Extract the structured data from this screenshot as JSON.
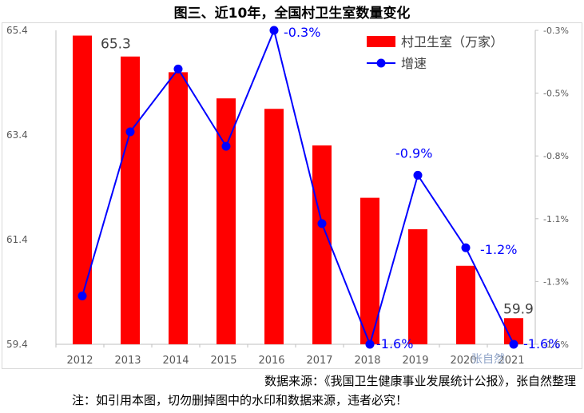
{
  "chart_data": {
    "type": "bar",
    "title": "图三、近10年，全国村卫生室数量变化",
    "categories": [
      "2012",
      "2013",
      "2014",
      "2015",
      "2016",
      "2017",
      "2018",
      "2019",
      "2020",
      "2021"
    ],
    "series": [
      {
        "name": "村卫生室（万家）",
        "type": "bar",
        "axis": "left",
        "color": "#ff0000",
        "values": [
          65.3,
          64.9,
          64.6,
          64.1,
          63.9,
          63.2,
          62.2,
          61.6,
          60.9,
          59.9
        ]
      },
      {
        "name": "增速",
        "type": "line",
        "axis": "right",
        "color": "#0000ff",
        "unit": "%",
        "values": [
          -1.4,
          -0.72,
          -0.46,
          -0.78,
          -0.3,
          -1.1,
          -1.6,
          -0.9,
          -1.2,
          -1.6
        ]
      }
    ],
    "y_left": {
      "min": 59.4,
      "max": 65.4,
      "ticks": [
        "65.4",
        "63.4",
        "61.4",
        "59.4"
      ]
    },
    "y_right": {
      "min": -1.6,
      "max": -0.3,
      "ticks": [
        "-0.3%",
        "-0.5%",
        "-0.8%",
        "-1.1%",
        "-1.3%",
        "-1.6%"
      ]
    },
    "bar_labels": [
      {
        "index": 0,
        "text": "65.3"
      },
      {
        "index": 9,
        "text": "59.9"
      }
    ],
    "line_labels": [
      {
        "index": 4,
        "text": "-0.3%"
      },
      {
        "index": 6,
        "text": "-1.6%"
      },
      {
        "index": 7,
        "text": "-0.9%"
      },
      {
        "index": 8,
        "text": "-1.2%"
      },
      {
        "index": 9,
        "text": "-1.6%"
      }
    ],
    "legend_position": "top-right",
    "grid": false
  },
  "watermark": "张自然",
  "notes": {
    "source": "数据来源：《我国卫生健康事业发展统计公报》，张自然整理",
    "warning": "注：如引用本图，切勿删掉图中的水印和数据来源，违者必究！"
  }
}
